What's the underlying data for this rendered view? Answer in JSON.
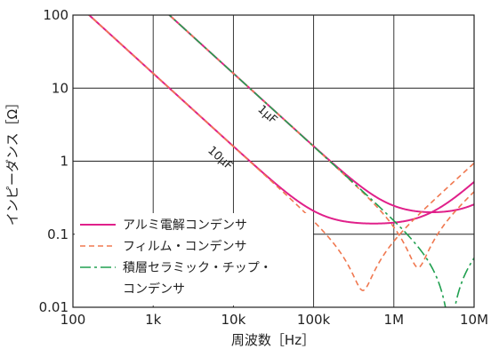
{
  "chart_data": {
    "type": "line",
    "xscale": "log",
    "yscale": "log",
    "xlim": [
      100,
      10000000
    ],
    "ylim": [
      0.01,
      100
    ],
    "grid": true,
    "xlabel": "周波数［Hz］",
    "ylabel": "インピーダンス［Ω］",
    "x_ticks": [
      "100",
      "1k",
      "10k",
      "100k",
      "1M",
      "10M"
    ],
    "y_ticks": [
      "0.01",
      "0.1",
      "1",
      "10",
      "100"
    ],
    "legend_position": "bottom-left",
    "series": [
      {
        "name": "アルミ電解コンデンサ",
        "color": "#e0208a",
        "style": "solid",
        "curves": [
          {
            "capacitance_F": 1e-06,
            "esr_ohm": 0.2,
            "esl_H": 2.8e-09
          },
          {
            "capacitance_F": 1e-05,
            "esr_ohm": 0.14,
            "esl_H": 8e-09
          }
        ]
      },
      {
        "name": "フィルム・コンデンサ",
        "color": "#f07850",
        "style": "dashed",
        "curves": [
          {
            "capacitance_F": 1e-06,
            "esr_ohm": 0.035,
            "esl_H": 6.3e-09
          },
          {
            "capacitance_F": 1e-05,
            "esr_ohm": 0.017,
            "esl_H": 1.5e-08
          }
        ]
      },
      {
        "name_lines": [
          "積層セラミック・チップ・",
          "コンデンサ"
        ],
        "color": "#20a050",
        "style": "dashdot",
        "curves": [
          {
            "capacitance_F": 1e-06,
            "esr_ohm": 0.005,
            "esl_H": 1e-09
          }
        ]
      }
    ],
    "annotations": [
      {
        "text": "1μF"
      },
      {
        "text": "10μF"
      }
    ]
  }
}
